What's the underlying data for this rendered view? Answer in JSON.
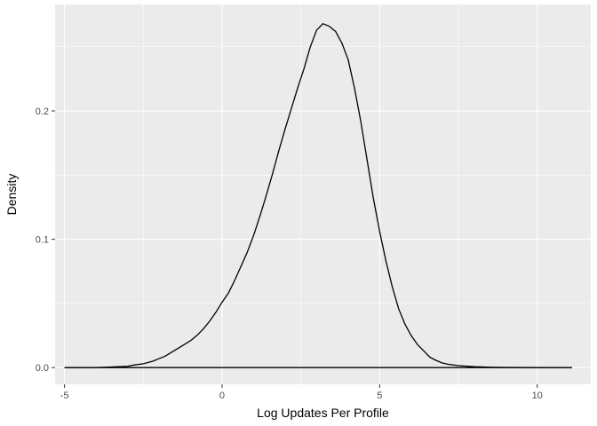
{
  "chart_data": {
    "type": "area",
    "title": "",
    "xlabel": "Log Updates Per Profile",
    "ylabel": "Density",
    "xlim": [
      -5.3,
      11.7
    ],
    "ylim": [
      -0.013,
      0.283
    ],
    "grid": true,
    "legend": "none",
    "colors": {
      "panel": "#ebebeb",
      "grid_major": "#ffffff",
      "line": "#000000",
      "tick": "#333333"
    },
    "x_ticks": [
      {
        "value": -5,
        "label": "-5"
      },
      {
        "value": 0,
        "label": "0"
      },
      {
        "value": 5,
        "label": "5"
      },
      {
        "value": 10,
        "label": "10"
      }
    ],
    "y_ticks": [
      {
        "value": 0.0,
        "label": "0.0"
      },
      {
        "value": 0.1,
        "label": "0.1"
      },
      {
        "value": 0.2,
        "label": "0.2"
      }
    ],
    "series": [
      {
        "x": [
          -5.0,
          -4.0,
          -3.5,
          -3.0,
          -2.8,
          -2.5,
          -2.2,
          -2.0,
          -1.8,
          -1.6,
          -1.4,
          -1.2,
          -1.0,
          -0.8,
          -0.6,
          -0.4,
          -0.2,
          0.0,
          0.2,
          0.4,
          0.6,
          0.8,
          1.0,
          1.2,
          1.4,
          1.6,
          1.8,
          2.0,
          2.2,
          2.4,
          2.6,
          2.8,
          3.0,
          3.2,
          3.4,
          3.6,
          3.8,
          4.0,
          4.2,
          4.4,
          4.6,
          4.8,
          5.0,
          5.2,
          5.4,
          5.6,
          5.8,
          6.0,
          6.2,
          6.4,
          6.6,
          6.8,
          7.0,
          7.2,
          7.5,
          8.0,
          8.5,
          9.0,
          10.0,
          10.8,
          11.1
        ],
        "y": [
          0.0,
          0.0,
          0.0005,
          0.001,
          0.002,
          0.003,
          0.005,
          0.007,
          0.009,
          0.012,
          0.015,
          0.018,
          0.021,
          0.025,
          0.03,
          0.036,
          0.043,
          0.051,
          0.058,
          0.068,
          0.079,
          0.09,
          0.103,
          0.118,
          0.134,
          0.151,
          0.169,
          0.186,
          0.202,
          0.218,
          0.233,
          0.25,
          0.263,
          0.268,
          0.266,
          0.262,
          0.253,
          0.24,
          0.218,
          0.192,
          0.162,
          0.132,
          0.106,
          0.083,
          0.063,
          0.046,
          0.034,
          0.025,
          0.018,
          0.013,
          0.008,
          0.0055,
          0.0035,
          0.0025,
          0.0015,
          0.0007,
          0.0003,
          0.0001,
          0.0,
          0.0,
          0.0
        ]
      }
    ]
  }
}
